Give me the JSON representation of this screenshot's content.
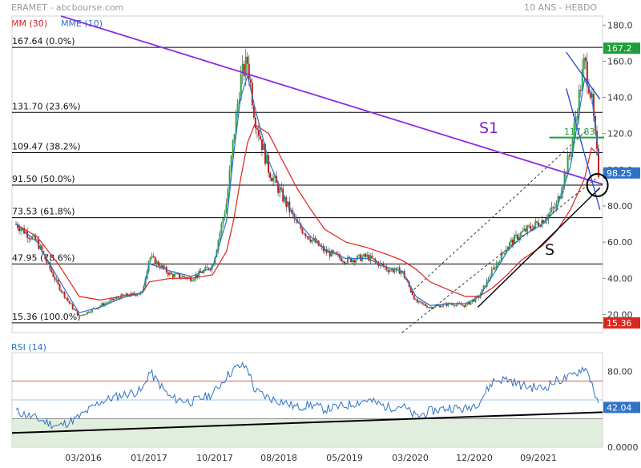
{
  "header": {
    "title": "ERAMET - abcbourse.com",
    "period": "10 ANS - HEBDO",
    "legend": [
      {
        "label": "MM (30)",
        "color": "#e0201c"
      },
      {
        "label": "MME (10)",
        "color": "#2f73c9"
      }
    ]
  },
  "chart_data": [
    {
      "type": "candlestick",
      "ylim": [
        10,
        185
      ],
      "y_ticks": [
        "180.0",
        "160.0",
        "140.0",
        "120.0",
        "100.0",
        "80.00",
        "60.00",
        "40.00",
        "20.00"
      ],
      "x_ticks": [
        "03/2016",
        "01/2017",
        "10/2017",
        "08/2018",
        "05/2019",
        "03/2020",
        "12/2020",
        "09/2021"
      ],
      "x": [
        "2015-06",
        "2015-09",
        "2015-12",
        "2016-02",
        "2016-03",
        "2016-06",
        "2016-09",
        "2016-12",
        "2017-01",
        "2017-04",
        "2017-07",
        "2017-10",
        "2017-12",
        "2018-01",
        "2018-02",
        "2018-03",
        "2018-04",
        "2018-06",
        "2018-08",
        "2018-10",
        "2018-12",
        "2019-02",
        "2019-05",
        "2019-08",
        "2019-11",
        "2020-01",
        "2020-03",
        "2020-05",
        "2020-08",
        "2020-10",
        "2020-12",
        "2021-02",
        "2021-04",
        "2021-06",
        "2021-09",
        "2021-11",
        "2022-01",
        "2022-03",
        "2022-04",
        "2022-05"
      ],
      "close": [
        70,
        60,
        36,
        24,
        19,
        25,
        30,
        32,
        52,
        42,
        40,
        47,
        82,
        118,
        150,
        160,
        130,
        100,
        85,
        70,
        62,
        55,
        50,
        52,
        45,
        44,
        27,
        24,
        26,
        25,
        30,
        45,
        58,
        65,
        72,
        80,
        110,
        160,
        140,
        98.25
      ],
      "sma30": [
        70,
        63,
        48,
        36,
        30,
        28,
        30,
        32,
        38,
        40,
        40,
        42,
        55,
        72,
        95,
        115,
        125,
        120,
        105,
        90,
        78,
        67,
        60,
        57,
        53,
        50,
        45,
        38,
        33,
        30,
        30,
        35,
        42,
        50,
        58,
        66,
        78,
        95,
        112,
        108
      ],
      "ema10": [
        70,
        60,
        40,
        27,
        21,
        24,
        29,
        32,
        48,
        44,
        41,
        46,
        72,
        108,
        140,
        152,
        135,
        105,
        87,
        72,
        63,
        56,
        51,
        51,
        46,
        44,
        30,
        25,
        26,
        26,
        30,
        42,
        55,
        63,
        70,
        78,
        102,
        150,
        142,
        108
      ],
      "series": [
        {
          "name": "MM (30)",
          "values_key": "sma30",
          "color": "#e0201c"
        },
        {
          "name": "MME (10)",
          "values_key": "ema10",
          "color": "#2f73c9"
        }
      ],
      "fib_levels": [
        {
          "label": "167.64  (0.0%)",
          "value": 167.64
        },
        {
          "label": "131.70  (23.6%)",
          "value": 131.7
        },
        {
          "label": "109.47  (38.2%)",
          "value": 109.47
        },
        {
          "label": "91.50  (50.0%)",
          "value": 91.5
        },
        {
          "label": "73.53  (61.8%)",
          "value": 73.53
        },
        {
          "label": "47.95  (78.6%)",
          "value": 47.95
        },
        {
          "label": "15.36  (100.0%)",
          "value": 15.36
        }
      ],
      "price_badges": [
        {
          "label": "167.2",
          "value": 167.2,
          "color": "#1f9e3a"
        },
        {
          "label": "98.25",
          "value": 98.25,
          "color": "#2f73c9"
        },
        {
          "label": "15.36",
          "value": 15.36,
          "color": "#d9271e"
        }
      ],
      "annotations": [
        {
          "label": "S1",
          "color": "#7a22c9"
        },
        {
          "label": "S",
          "color": "#111111"
        },
        {
          "label": "117.83",
          "color": "#1f9e3a"
        }
      ]
    },
    {
      "type": "line",
      "title": "RSI (14)",
      "ylim": [
        0,
        100
      ],
      "y_ticks": [
        "80.00",
        "0.0000"
      ],
      "levels": [
        70,
        50,
        30
      ],
      "x": [
        "2015-06",
        "2015-09",
        "2015-12",
        "2016-02",
        "2016-03",
        "2016-06",
        "2016-09",
        "2016-12",
        "2017-01",
        "2017-04",
        "2017-07",
        "2017-10",
        "2017-12",
        "2018-01",
        "2018-02",
        "2018-03",
        "2018-04",
        "2018-06",
        "2018-08",
        "2018-10",
        "2018-12",
        "2019-02",
        "2019-05",
        "2019-08",
        "2019-11",
        "2020-01",
        "2020-03",
        "2020-05",
        "2020-08",
        "2020-10",
        "2020-12",
        "2021-02",
        "2021-04",
        "2021-06",
        "2021-09",
        "2021-11",
        "2022-01",
        "2022-03",
        "2022-04",
        "2022-05"
      ],
      "values": [
        38,
        30,
        22,
        28,
        32,
        48,
        55,
        60,
        80,
        52,
        48,
        56,
        75,
        82,
        86,
        84,
        60,
        52,
        48,
        42,
        45,
        40,
        44,
        50,
        42,
        44,
        32,
        38,
        42,
        40,
        48,
        70,
        72,
        65,
        62,
        70,
        74,
        85,
        70,
        42.04
      ],
      "last_value_label": "42.04"
    }
  ]
}
